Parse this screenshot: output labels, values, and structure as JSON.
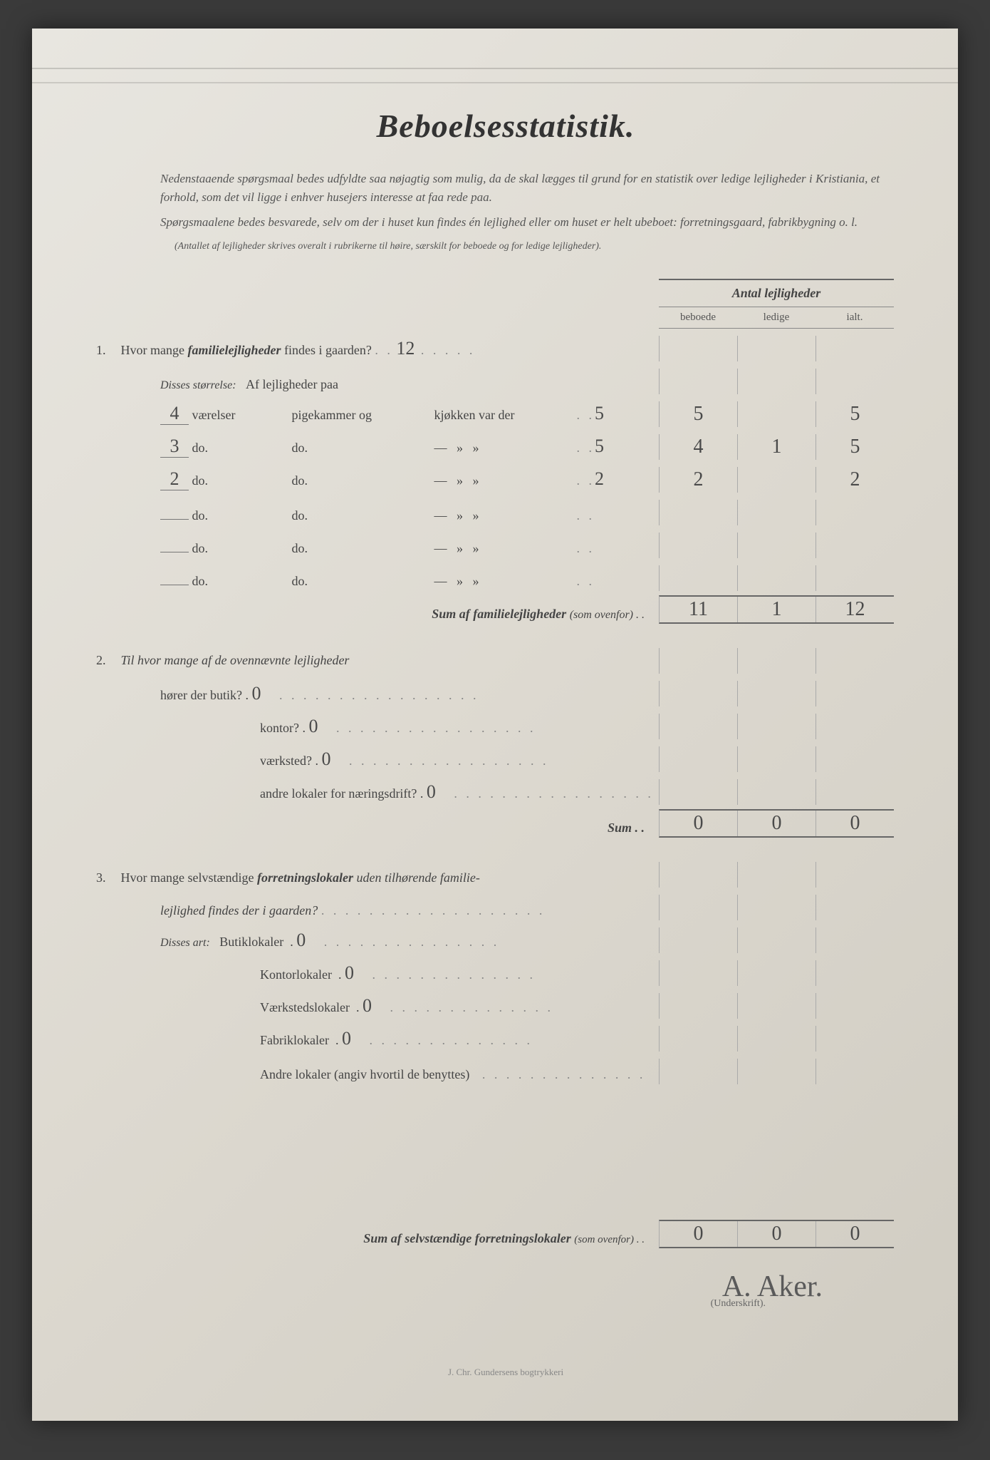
{
  "title": "Beboelsesstatistik.",
  "intro_p1": "Nedenstaaende spørgsmaal bedes udfyldte saa nøjagtig som mulig, da de skal lægges til grund for en statistik over ledige lejligheder i Kristiania, et forhold, som det vil ligge i enhver husejers interesse at faa rede paa.",
  "intro_p2": "Spørgsmaalene bedes besvarede, selv om der i huset kun findes én lejlighed eller om huset er helt ubeboet: forretningsgaard, fabrikbygning o. l.",
  "intro_p3": "(Antallet af lejligheder skrives overalt i rubrikerne til høire, særskilt for beboede og for ledige lejligheder).",
  "col_header": "Antal lejligheder",
  "col_sub": {
    "a": "beboede",
    "b": "ledige",
    "c": "ialt."
  },
  "q1": {
    "num": "1.",
    "text_a": "Hvor mange ",
    "text_b": "familielejligheder",
    "text_c": " findes i gaarden?",
    "answer": "12",
    "disses": "Disses størrelse:",
    "af": "Af lejligheder paa",
    "labels": {
      "vaer": "værelser",
      "pige": "pigekammer og",
      "kjok": "kjøkken var der",
      "do": "do.",
      "dash": "—"
    },
    "rows": [
      {
        "rooms": "4",
        "last": "5",
        "beboede": "5",
        "ledige": "",
        "ialt": "5"
      },
      {
        "rooms": "3",
        "last": "5",
        "beboede": "4",
        "ledige": "1",
        "ialt": "5"
      },
      {
        "rooms": "2",
        "last": "2",
        "beboede": "2",
        "ledige": "",
        "ialt": "2"
      },
      {
        "rooms": "",
        "last": "",
        "beboede": "",
        "ledige": "",
        "ialt": ""
      },
      {
        "rooms": "",
        "last": "",
        "beboede": "",
        "ledige": "",
        "ialt": ""
      },
      {
        "rooms": "",
        "last": "",
        "beboede": "",
        "ledige": "",
        "ialt": ""
      }
    ],
    "sum_label": "Sum af familielejligheder",
    "sum_note": "(som ovenfor) . .",
    "sum": {
      "beboede": "11",
      "ledige": "1",
      "ialt": "12"
    }
  },
  "q2": {
    "num": "2.",
    "text": "Til hvor mange af de ovennævnte lejligheder",
    "lines": [
      {
        "label": "hører der butik?",
        "val": "0"
      },
      {
        "label": "kontor?",
        "val": "0"
      },
      {
        "label": "værksted?",
        "val": "0"
      },
      {
        "label": "andre lokaler for næringsdrift?",
        "val": "0"
      }
    ],
    "sum_label": "Sum . .",
    "sum": {
      "beboede": "0",
      "ledige": "0",
      "ialt": "0"
    }
  },
  "q3": {
    "num": "3.",
    "text_a": "Hvor mange selvstændige ",
    "text_b": "forretningslokaler",
    "text_c": " uden tilhørende familie-",
    "text_d": "lejlighed findes der i gaarden?",
    "disses": "Disses art:",
    "lines": [
      {
        "label": "Butiklokaler",
        "val": "0"
      },
      {
        "label": "Kontorlokaler",
        "val": "0"
      },
      {
        "label": "Værkstedslokaler",
        "val": "0"
      },
      {
        "label": "Fabriklokaler",
        "val": "0"
      },
      {
        "label": "Andre lokaler (angiv hvortil de benyttes)",
        "val": ""
      }
    ],
    "sum_label": "Sum af selvstændige forretningslokaler",
    "sum_note": "(som ovenfor) . .",
    "sum": {
      "beboede": "0",
      "ledige": "0",
      "ialt": "0"
    }
  },
  "signature": "A. Aker.",
  "sig_label": "(Underskrift).",
  "footer": "J. Chr. Gundersens bogtrykkeri"
}
